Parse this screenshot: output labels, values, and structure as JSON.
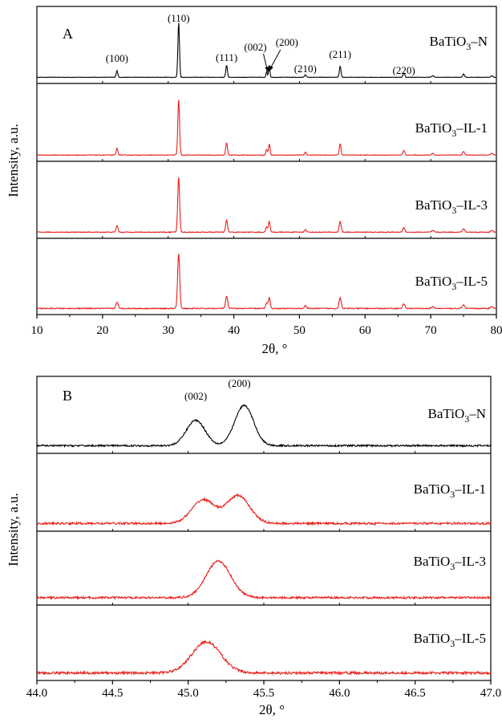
{
  "chart_data": [
    {
      "type": "line",
      "panel_label": "A",
      "xlabel": "2θ, °",
      "ylabel": "Intensity, a.u.",
      "xlim": [
        10,
        80
      ],
      "xticks": [
        "10",
        "20",
        "30",
        "40",
        "50",
        "60",
        "70",
        "80"
      ],
      "grid": false,
      "stacked": true,
      "peaks": [
        {
          "x": 22.2,
          "h": 0.12,
          "w": 0.25
        },
        {
          "x": 31.6,
          "h": 1.0,
          "w": 0.25
        },
        {
          "x": 38.9,
          "h": 0.22,
          "w": 0.25
        },
        {
          "x": 45.0,
          "h": 0.1,
          "w": 0.22
        },
        {
          "x": 45.4,
          "h": 0.2,
          "w": 0.22
        },
        {
          "x": 50.9,
          "h": 0.05,
          "w": 0.25
        },
        {
          "x": 56.2,
          "h": 0.2,
          "w": 0.25
        },
        {
          "x": 65.9,
          "h": 0.08,
          "w": 0.28
        },
        {
          "x": 70.3,
          "h": 0.03,
          "w": 0.3
        },
        {
          "x": 75.0,
          "h": 0.06,
          "w": 0.3
        },
        {
          "x": 79.3,
          "h": 0.03,
          "w": 0.3
        }
      ],
      "series": [
        {
          "name": "BaTiO3–N",
          "label_main": "BaTiO",
          "label_sub": "3",
          "label_rest": "–N",
          "color": "#000000",
          "noise": 0.004,
          "width_factor": 1.0
        },
        {
          "name": "BaTiO3–IL-1",
          "label_main": "BaTiO",
          "label_sub": "3",
          "label_rest": "–IL-1",
          "color": "#e8201b",
          "noise": 0.006,
          "width_factor": 1.1
        },
        {
          "name": "BaTiO3–IL-3",
          "label_main": "BaTiO",
          "label_sub": "3",
          "label_rest": "–IL-3",
          "color": "#e8201b",
          "noise": 0.007,
          "width_factor": 1.2
        },
        {
          "name": "BaTiO3–IL-5",
          "label_main": "BaTiO",
          "label_sub": "3",
          "label_rest": "–IL-5",
          "color": "#e8201b",
          "noise": 0.009,
          "width_factor": 1.35
        }
      ],
      "annotations": [
        {
          "text": "(100)",
          "x": 22.2
        },
        {
          "text": "(110)",
          "x": 31.6
        },
        {
          "text": "(111)",
          "x": 38.9
        },
        {
          "text": "(002)",
          "x": 45.0
        },
        {
          "text": "(200)",
          "x": 45.4
        },
        {
          "text": "(210)",
          "x": 50.9
        },
        {
          "text": "(211)",
          "x": 56.2
        },
        {
          "text": "(220)",
          "x": 65.9
        }
      ]
    },
    {
      "type": "line",
      "panel_label": "B",
      "xlabel": "2θ, °",
      "ylabel": "Intensity, a.u.",
      "xlim": [
        44.0,
        47.0
      ],
      "xticks": [
        "44.0",
        "44.5",
        "45.0",
        "45.5",
        "46.0",
        "46.5",
        "47.0"
      ],
      "grid": false,
      "stacked": true,
      "series": [
        {
          "name": "BaTiO3–N",
          "label_main": "BaTiO",
          "label_sub": "3",
          "label_rest": "–N",
          "color": "#000000",
          "peaks": [
            {
              "x": 45.05,
              "h": 0.6,
              "w": 0.13
            },
            {
              "x": 45.37,
              "h": 0.95,
              "w": 0.13
            }
          ],
          "noise": 0.02
        },
        {
          "name": "BaTiO3–IL-1",
          "label_main": "BaTiO",
          "label_sub": "3",
          "label_rest": "–IL-1",
          "color": "#e8201b",
          "peaks": [
            {
              "x": 45.1,
              "h": 0.55,
              "w": 0.16
            },
            {
              "x": 45.33,
              "h": 0.65,
              "w": 0.16
            }
          ],
          "noise": 0.025
        },
        {
          "name": "BaTiO3–IL-3",
          "label_main": "BaTiO",
          "label_sub": "3",
          "label_rest": "–IL-3",
          "color": "#e8201b",
          "peaks": [
            {
              "x": 45.2,
              "h": 0.9,
              "w": 0.17
            }
          ],
          "noise": 0.025
        },
        {
          "name": "BaTiO3–IL-5",
          "label_main": "BaTiO",
          "label_sub": "3",
          "label_rest": "–IL-5",
          "color": "#e8201b",
          "peaks": [
            {
              "x": 45.12,
              "h": 0.75,
              "w": 0.2
            }
          ],
          "noise": 0.03
        }
      ],
      "annotations": [
        {
          "text": "(002)",
          "x": 45.05
        },
        {
          "text": "(200)",
          "x": 45.37
        }
      ]
    }
  ]
}
